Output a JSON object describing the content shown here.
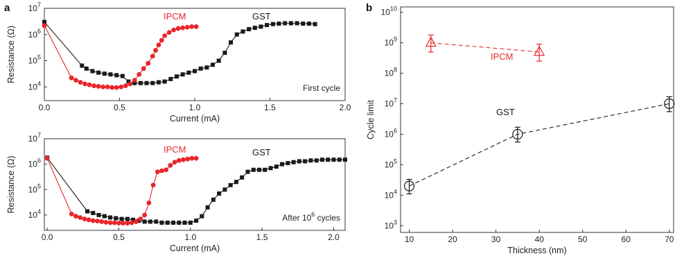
{
  "colors": {
    "ipcm": "#e8262b",
    "gst": "#1a1a1a",
    "axis": "#333333"
  },
  "panels": {
    "a_label": "a",
    "b_label": "b"
  },
  "chart_data": [
    {
      "id": "a_top",
      "type": "scatter",
      "xlabel": "Current (mA)",
      "ylabel": "Resistance (Ω)",
      "xlim": [
        0,
        2.0
      ],
      "ylog": true,
      "ylim": [
        3000,
        10000000
      ],
      "xticks": [
        "0.0",
        "0.5",
        "1.0",
        "1.5",
        "2.0"
      ],
      "xtick_values": [
        0,
        0.5,
        1.0,
        1.5,
        2.0
      ],
      "yticks": [
        {
          "v": 10000,
          "base": "10",
          "exp": "4"
        },
        {
          "v": 100000,
          "base": "10",
          "exp": "5"
        },
        {
          "v": 1000000,
          "base": "10",
          "exp": "6"
        },
        {
          "v": 10000000,
          "base": "10",
          "exp": "7"
        }
      ],
      "annotation": "First cycle",
      "series": [
        {
          "name": "GST",
          "marker": "square",
          "x": [
            0,
            0.25,
            0.28,
            0.32,
            0.36,
            0.4,
            0.44,
            0.48,
            0.52,
            0.56,
            0.6,
            0.64,
            0.68,
            0.72,
            0.76,
            0.8,
            0.84,
            0.88,
            0.92,
            0.96,
            1.0,
            1.04,
            1.08,
            1.12,
            1.16,
            1.2,
            1.24,
            1.28,
            1.32,
            1.36,
            1.4,
            1.44,
            1.48,
            1.52,
            1.56,
            1.6,
            1.64,
            1.68,
            1.72,
            1.76,
            1.8
          ],
          "y": [
            3000000,
            65000,
            50000,
            40000,
            35000,
            32000,
            30000,
            28000,
            26000,
            16000,
            14000,
            14000,
            14000,
            14000,
            15000,
            16000,
            20000,
            25000,
            30000,
            35000,
            40000,
            50000,
            55000,
            70000,
            100000,
            200000,
            500000,
            1000000,
            1300000,
            1600000,
            1800000,
            2000000,
            2300000,
            2500000,
            2600000,
            2700000,
            2700000,
            2700000,
            2600000,
            2600000,
            2500000
          ]
        },
        {
          "name": "IPCM",
          "marker": "circle",
          "x": [
            0,
            0.18,
            0.21,
            0.24,
            0.27,
            0.3,
            0.33,
            0.36,
            0.39,
            0.42,
            0.45,
            0.48,
            0.51,
            0.54,
            0.57,
            0.6,
            0.63,
            0.66,
            0.69,
            0.72,
            0.74,
            0.76,
            0.78,
            0.8,
            0.83,
            0.86,
            0.89,
            0.92,
            0.95,
            0.98,
            1.01
          ],
          "y": [
            2200000,
            22000,
            18000,
            15000,
            13000,
            12000,
            11000,
            10500,
            10000,
            10000,
            9500,
            9500,
            10000,
            11000,
            13000,
            18000,
            30000,
            50000,
            80000,
            150000,
            250000,
            400000,
            600000,
            900000,
            1200000,
            1500000,
            1700000,
            1800000,
            1900000,
            2000000,
            2000000
          ]
        }
      ],
      "labels": {
        "GST": "GST",
        "IPCM": "IPCM"
      }
    },
    {
      "id": "a_bottom",
      "type": "scatter",
      "xlabel": "Current (mA)",
      "ylabel": "Resistance (Ω)",
      "xlim": [
        -0.02,
        2.08
      ],
      "ylog": true,
      "ylim": [
        2500,
        10000000
      ],
      "xticks": [
        "0.0",
        "0.5",
        "1.0",
        "1.5",
        "2.0"
      ],
      "xtick_values": [
        0,
        0.5,
        1.0,
        1.5,
        2.0
      ],
      "yticks": [
        {
          "v": 10000,
          "base": "10",
          "exp": "4"
        },
        {
          "v": 100000,
          "base": "10",
          "exp": "5"
        },
        {
          "v": 1000000,
          "base": "10",
          "exp": "6"
        },
        {
          "v": 10000000,
          "base": "10",
          "exp": "7"
        }
      ],
      "annotation_prefix": "After 10",
      "annotation_sup": "6",
      "annotation_suffix": " cycles",
      "series": [
        {
          "name": "GST",
          "marker": "square",
          "x": [
            0,
            0.28,
            0.32,
            0.36,
            0.4,
            0.44,
            0.48,
            0.52,
            0.56,
            0.6,
            0.64,
            0.68,
            0.72,
            0.76,
            0.8,
            0.84,
            0.88,
            0.92,
            0.96,
            1.0,
            1.04,
            1.08,
            1.12,
            1.16,
            1.2,
            1.24,
            1.28,
            1.32,
            1.36,
            1.4,
            1.44,
            1.48,
            1.52,
            1.56,
            1.6,
            1.64,
            1.68,
            1.72,
            1.76,
            1.8,
            1.84,
            1.88,
            1.92,
            1.96,
            2.0,
            2.04,
            2.08
          ],
          "y": [
            1800000,
            14000,
            12000,
            10000,
            9000,
            8000,
            7500,
            7000,
            7000,
            6500,
            6000,
            5500,
            5500,
            5500,
            5000,
            5000,
            5000,
            5000,
            5000,
            5000,
            6000,
            9000,
            20000,
            40000,
            70000,
            100000,
            150000,
            200000,
            300000,
            500000,
            600000,
            600000,
            600000,
            700000,
            800000,
            1000000,
            1100000,
            1200000,
            1300000,
            1300000,
            1400000,
            1400000,
            1500000,
            1500000,
            1500000,
            1500000,
            1500000
          ]
        },
        {
          "name": "IPCM",
          "marker": "circle",
          "x": [
            0,
            0.17,
            0.2,
            0.23,
            0.26,
            0.29,
            0.32,
            0.35,
            0.38,
            0.41,
            0.44,
            0.47,
            0.5,
            0.53,
            0.56,
            0.59,
            0.62,
            0.65,
            0.68,
            0.71,
            0.74,
            0.77,
            0.8,
            0.83,
            0.86,
            0.89,
            0.92,
            0.95,
            0.98,
            1.01,
            1.04
          ],
          "y": [
            1700000,
            11000,
            9000,
            8000,
            7000,
            6500,
            6000,
            5800,
            5500,
            5200,
            5000,
            5000,
            4800,
            4800,
            4800,
            5000,
            5500,
            7000,
            10000,
            30000,
            150000,
            500000,
            550000,
            600000,
            900000,
            1200000,
            1400000,
            1500000,
            1600000,
            1700000,
            1700000
          ]
        }
      ],
      "labels": {
        "GST": "GST",
        "IPCM": "IPCM"
      }
    },
    {
      "id": "b",
      "type": "scatter",
      "xlabel": "Thickness (nm)",
      "ylabel": "Cycle limit",
      "xlim": [
        8,
        71
      ],
      "ylog": true,
      "ylim": [
        600,
        15000000000
      ],
      "xticks": [
        "10",
        "20",
        "30",
        "40",
        "50",
        "60",
        "70"
      ],
      "xtick_values": [
        10,
        20,
        30,
        40,
        50,
        60,
        70
      ],
      "yticks": [
        {
          "v": 1000,
          "base": "10",
          "exp": "3"
        },
        {
          "v": 10000,
          "base": "10",
          "exp": "4"
        },
        {
          "v": 100000,
          "base": "10",
          "exp": "5"
        },
        {
          "v": 1000000,
          "base": "10",
          "exp": "6"
        },
        {
          "v": 10000000,
          "base": "10",
          "exp": "7"
        },
        {
          "v": 100000000,
          "base": "10",
          "exp": "8"
        },
        {
          "v": 1000000000,
          "base": "10",
          "exp": "9"
        },
        {
          "v": 10000000000,
          "base": "10",
          "exp": "10"
        }
      ],
      "series": [
        {
          "name": "IPCM",
          "marker": "triangle",
          "x": [
            15,
            40
          ],
          "y": [
            1000000000,
            500000000
          ],
          "err_lo": [
            500000000,
            250000000
          ],
          "err_hi": [
            1800000000,
            900000000
          ]
        },
        {
          "name": "GST",
          "marker": "circle-open",
          "x": [
            10,
            35,
            70
          ],
          "y": [
            20000,
            1000000,
            10000000
          ],
          "err_lo": [
            11000,
            550000,
            5500000
          ],
          "err_hi": [
            33000,
            1700000,
            17000000
          ]
        }
      ],
      "labels": {
        "GST": "GST",
        "IPCM": "IPCM"
      }
    }
  ]
}
